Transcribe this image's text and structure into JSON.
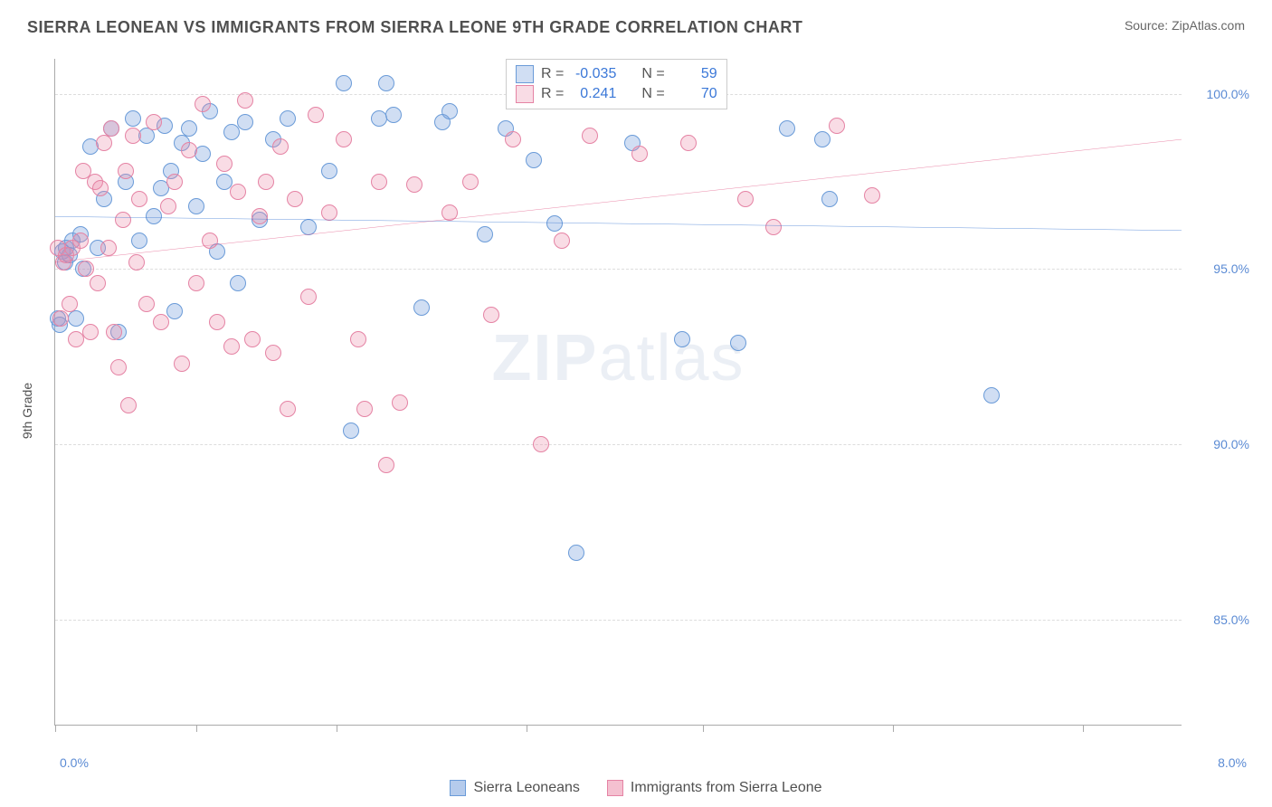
{
  "header": {
    "title": "SIERRA LEONEAN VS IMMIGRANTS FROM SIERRA LEONE 9TH GRADE CORRELATION CHART",
    "source": "Source: ZipAtlas.com"
  },
  "chart": {
    "type": "scatter",
    "y_axis_label": "9th Grade",
    "xlim": [
      0.0,
      8.0
    ],
    "ylim": [
      82.0,
      101.0
    ],
    "x_ticks": [
      0.0,
      1.0,
      2.0,
      3.35,
      4.6,
      5.95,
      7.3
    ],
    "x_tick_labels": {
      "min": "0.0%",
      "max": "8.0%"
    },
    "y_gridlines": [
      85.0,
      90.0,
      95.0,
      100.0
    ],
    "y_tick_labels": [
      "85.0%",
      "90.0%",
      "95.0%",
      "100.0%"
    ],
    "grid_color": "#dddddd",
    "axis_color": "#aaaaaa",
    "background_color": "#ffffff",
    "tick_label_color": "#5b8bd4",
    "axis_label_color": "#505050",
    "series": [
      {
        "name": "Sierra Leoneans",
        "fill_color": "rgba(120,160,220,0.35)",
        "stroke_color": "#6a9bd8",
        "marker_radius": 9,
        "r_value": "-0.035",
        "n_value": "59",
        "trend": {
          "color": "#2f6fd0",
          "width": 3,
          "y_at_xmin": 96.5,
          "y_at_xmax": 96.1
        },
        "points": [
          [
            0.02,
            93.6
          ],
          [
            0.03,
            93.4
          ],
          [
            0.05,
            95.5
          ],
          [
            0.07,
            95.2
          ],
          [
            0.08,
            95.6
          ],
          [
            0.1,
            95.4
          ],
          [
            0.12,
            95.8
          ],
          [
            0.15,
            93.6
          ],
          [
            0.18,
            96.0
          ],
          [
            0.2,
            95.0
          ],
          [
            0.25,
            98.5
          ],
          [
            0.3,
            95.6
          ],
          [
            0.35,
            97.0
          ],
          [
            0.4,
            99.0
          ],
          [
            0.45,
            93.2
          ],
          [
            0.5,
            97.5
          ],
          [
            0.55,
            99.3
          ],
          [
            0.6,
            95.8
          ],
          [
            0.65,
            98.8
          ],
          [
            0.7,
            96.5
          ],
          [
            0.75,
            97.3
          ],
          [
            0.78,
            99.1
          ],
          [
            0.82,
            97.8
          ],
          [
            0.85,
            93.8
          ],
          [
            0.9,
            98.6
          ],
          [
            0.95,
            99.0
          ],
          [
            1.0,
            96.8
          ],
          [
            1.05,
            98.3
          ],
          [
            1.1,
            99.5
          ],
          [
            1.15,
            95.5
          ],
          [
            1.2,
            97.5
          ],
          [
            1.25,
            98.9
          ],
          [
            1.3,
            94.6
          ],
          [
            1.35,
            99.2
          ],
          [
            1.45,
            96.4
          ],
          [
            1.55,
            98.7
          ],
          [
            1.65,
            99.3
          ],
          [
            1.8,
            96.2
          ],
          [
            1.95,
            97.8
          ],
          [
            2.05,
            100.3
          ],
          [
            2.1,
            90.4
          ],
          [
            2.3,
            99.3
          ],
          [
            2.35,
            100.3
          ],
          [
            2.4,
            99.4
          ],
          [
            2.6,
            93.9
          ],
          [
            2.75,
            99.2
          ],
          [
            2.8,
            99.5
          ],
          [
            3.05,
            96.0
          ],
          [
            3.2,
            99.0
          ],
          [
            3.4,
            98.1
          ],
          [
            3.55,
            96.3
          ],
          [
            3.7,
            86.9
          ],
          [
            4.1,
            98.6
          ],
          [
            4.45,
            93.0
          ],
          [
            4.85,
            92.9
          ],
          [
            5.2,
            99.0
          ],
          [
            5.45,
            98.7
          ],
          [
            5.5,
            97.0
          ],
          [
            6.65,
            91.4
          ]
        ]
      },
      {
        "name": "Immigrants from Sierra Leone",
        "fill_color": "rgba(235,140,170,0.30)",
        "stroke_color": "#e583a4",
        "marker_radius": 9,
        "r_value": "0.241",
        "n_value": "70",
        "trend": {
          "color": "#e25a87",
          "width": 3,
          "y_at_xmin": 95.2,
          "y_at_xmax": 98.7
        },
        "points": [
          [
            0.02,
            95.6
          ],
          [
            0.04,
            93.6
          ],
          [
            0.06,
            95.2
          ],
          [
            0.08,
            95.4
          ],
          [
            0.1,
            94.0
          ],
          [
            0.12,
            95.6
          ],
          [
            0.15,
            93.0
          ],
          [
            0.18,
            95.8
          ],
          [
            0.2,
            97.8
          ],
          [
            0.22,
            95.0
          ],
          [
            0.25,
            93.2
          ],
          [
            0.28,
            97.5
          ],
          [
            0.3,
            94.6
          ],
          [
            0.32,
            97.3
          ],
          [
            0.35,
            98.6
          ],
          [
            0.38,
            95.6
          ],
          [
            0.4,
            99.0
          ],
          [
            0.42,
            93.2
          ],
          [
            0.45,
            92.2
          ],
          [
            0.48,
            96.4
          ],
          [
            0.5,
            97.8
          ],
          [
            0.52,
            91.1
          ],
          [
            0.55,
            98.8
          ],
          [
            0.58,
            95.2
          ],
          [
            0.6,
            97.0
          ],
          [
            0.65,
            94.0
          ],
          [
            0.7,
            99.2
          ],
          [
            0.75,
            93.5
          ],
          [
            0.8,
            96.8
          ],
          [
            0.85,
            97.5
          ],
          [
            0.9,
            92.3
          ],
          [
            0.95,
            98.4
          ],
          [
            1.0,
            94.6
          ],
          [
            1.05,
            99.7
          ],
          [
            1.1,
            95.8
          ],
          [
            1.15,
            93.5
          ],
          [
            1.2,
            98.0
          ],
          [
            1.25,
            92.8
          ],
          [
            1.3,
            97.2
          ],
          [
            1.35,
            99.8
          ],
          [
            1.4,
            93.0
          ],
          [
            1.45,
            96.5
          ],
          [
            1.5,
            97.5
          ],
          [
            1.55,
            92.6
          ],
          [
            1.6,
            98.5
          ],
          [
            1.65,
            91.0
          ],
          [
            1.7,
            97.0
          ],
          [
            1.8,
            94.2
          ],
          [
            1.85,
            99.4
          ],
          [
            1.95,
            96.6
          ],
          [
            2.05,
            98.7
          ],
          [
            2.15,
            93.0
          ],
          [
            2.2,
            91.0
          ],
          [
            2.3,
            97.5
          ],
          [
            2.35,
            89.4
          ],
          [
            2.45,
            91.2
          ],
          [
            2.55,
            97.4
          ],
          [
            2.8,
            96.6
          ],
          [
            2.95,
            97.5
          ],
          [
            3.25,
            98.7
          ],
          [
            3.45,
            90.0
          ],
          [
            3.6,
            95.8
          ],
          [
            3.8,
            98.8
          ],
          [
            4.15,
            98.3
          ],
          [
            4.5,
            98.6
          ],
          [
            4.9,
            97.0
          ],
          [
            5.1,
            96.2
          ],
          [
            5.55,
            99.1
          ],
          [
            5.8,
            97.1
          ],
          [
            3.1,
            93.7
          ]
        ]
      }
    ],
    "stats_labels": {
      "r": "R =",
      "n": "N ="
    },
    "bottom_legend": [
      {
        "label": "Sierra Leoneans",
        "fill": "rgba(120,160,220,0.55)",
        "stroke": "#6a9bd8"
      },
      {
        "label": "Immigrants from Sierra Leone",
        "fill": "rgba(235,140,170,0.55)",
        "stroke": "#e583a4"
      }
    ],
    "watermark": {
      "part1": "ZIP",
      "part2": "atlas"
    }
  }
}
